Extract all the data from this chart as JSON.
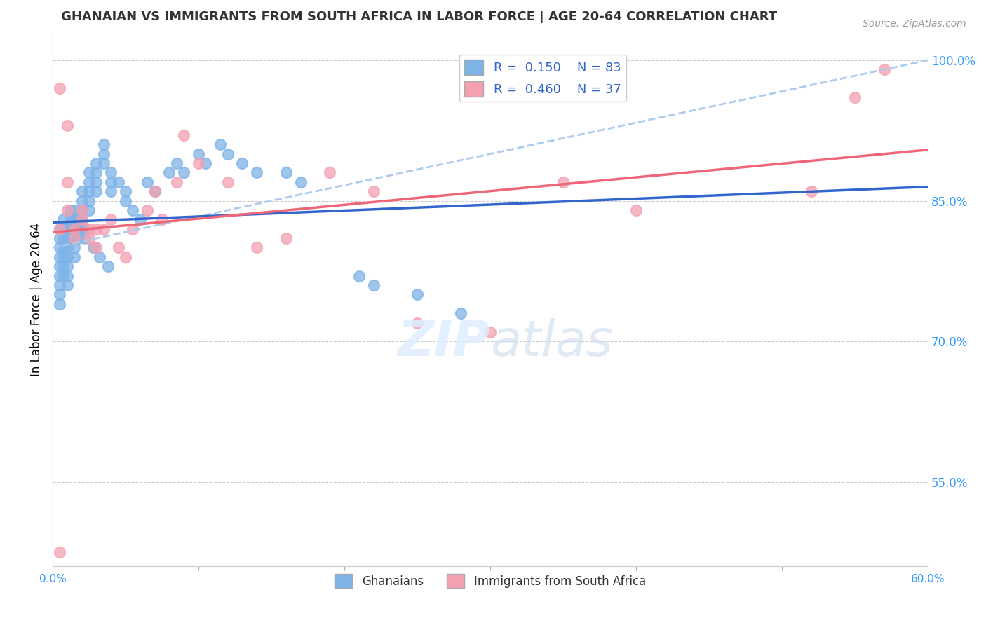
{
  "title": "GHANAIAN VS IMMIGRANTS FROM SOUTH AFRICA IN LABOR FORCE | AGE 20-64 CORRELATION CHART",
  "source": "Source: ZipAtlas.com",
  "xlabel_bottom": "",
  "ylabel": "In Labor Force | Age 20-64",
  "x_min": 0.0,
  "x_max": 0.6,
  "y_min": 0.46,
  "y_max": 1.03,
  "x_ticks": [
    0.0,
    0.1,
    0.2,
    0.3,
    0.4,
    0.5,
    0.6
  ],
  "x_tick_labels": [
    "0.0%",
    "",
    "",
    "",
    "",
    "",
    "60.0%"
  ],
  "y_ticks": [
    0.55,
    0.7,
    0.85,
    1.0
  ],
  "y_tick_labels": [
    "55.0%",
    "70.0%",
    "85.0%",
    "100.0%"
  ],
  "legend_R1": "0.150",
  "legend_N1": "83",
  "legend_R2": "0.460",
  "legend_N2": "37",
  "color_blue": "#7EB3E8",
  "color_pink": "#F4A0B0",
  "color_blue_line": "#3366CC",
  "color_pink_line": "#EE6677",
  "color_dashed": "#AACCEE",
  "watermark": "ZIPatlas",
  "blue_scatter_x": [
    0.01,
    0.01,
    0.01,
    0.01,
    0.01,
    0.01,
    0.01,
    0.015,
    0.015,
    0.015,
    0.015,
    0.015,
    0.015,
    0.02,
    0.02,
    0.02,
    0.02,
    0.02,
    0.025,
    0.025,
    0.025,
    0.025,
    0.025,
    0.03,
    0.03,
    0.03,
    0.03,
    0.035,
    0.035,
    0.035,
    0.04,
    0.04,
    0.04,
    0.045,
    0.05,
    0.05,
    0.055,
    0.06,
    0.065,
    0.07,
    0.08,
    0.085,
    0.09,
    0.1,
    0.105,
    0.115,
    0.12,
    0.13,
    0.14,
    0.16,
    0.17,
    0.005,
    0.005,
    0.005,
    0.005,
    0.005,
    0.005,
    0.005,
    0.005,
    0.005,
    0.007,
    0.007,
    0.007,
    0.007,
    0.007,
    0.007,
    0.007,
    0.012,
    0.012,
    0.012,
    0.012,
    0.018,
    0.018,
    0.018,
    0.022,
    0.022,
    0.028,
    0.032,
    0.038,
    0.21,
    0.22,
    0.25,
    0.28
  ],
  "blue_scatter_y": [
    0.82,
    0.81,
    0.8,
    0.79,
    0.78,
    0.77,
    0.76,
    0.84,
    0.83,
    0.82,
    0.81,
    0.8,
    0.79,
    0.86,
    0.85,
    0.84,
    0.83,
    0.82,
    0.88,
    0.87,
    0.86,
    0.85,
    0.84,
    0.89,
    0.88,
    0.87,
    0.86,
    0.91,
    0.9,
    0.89,
    0.88,
    0.87,
    0.86,
    0.87,
    0.86,
    0.85,
    0.84,
    0.83,
    0.87,
    0.86,
    0.88,
    0.89,
    0.88,
    0.9,
    0.89,
    0.91,
    0.9,
    0.89,
    0.88,
    0.88,
    0.87,
    0.82,
    0.81,
    0.8,
    0.79,
    0.78,
    0.77,
    0.76,
    0.75,
    0.74,
    0.83,
    0.82,
    0.81,
    0.8,
    0.79,
    0.78,
    0.77,
    0.84,
    0.83,
    0.82,
    0.81,
    0.83,
    0.82,
    0.81,
    0.82,
    0.81,
    0.8,
    0.79,
    0.78,
    0.77,
    0.76,
    0.75,
    0.73
  ],
  "pink_scatter_x": [
    0.005,
    0.005,
    0.005,
    0.01,
    0.01,
    0.01,
    0.015,
    0.015,
    0.02,
    0.02,
    0.025,
    0.025,
    0.03,
    0.03,
    0.035,
    0.04,
    0.045,
    0.05,
    0.055,
    0.065,
    0.07,
    0.075,
    0.085,
    0.09,
    0.1,
    0.12,
    0.14,
    0.16,
    0.19,
    0.22,
    0.25,
    0.3,
    0.35,
    0.4,
    0.52,
    0.55,
    0.57
  ],
  "pink_scatter_y": [
    0.475,
    0.82,
    0.97,
    0.93,
    0.87,
    0.84,
    0.82,
    0.81,
    0.84,
    0.83,
    0.82,
    0.81,
    0.82,
    0.8,
    0.82,
    0.83,
    0.8,
    0.79,
    0.82,
    0.84,
    0.86,
    0.83,
    0.87,
    0.92,
    0.89,
    0.87,
    0.8,
    0.81,
    0.88,
    0.86,
    0.72,
    0.71,
    0.87,
    0.84,
    0.86,
    0.96,
    0.99
  ]
}
